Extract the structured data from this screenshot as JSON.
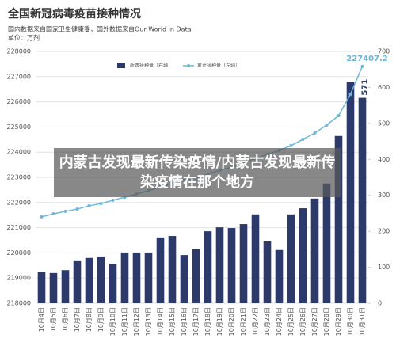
{
  "chart_data": {
    "type": "bar",
    "title": "全国新冠病毒疫苗接种情况",
    "subtitle": "国内数据来自国家卫生健康委，国外数据来自Our World in Data",
    "unit": "单位：万剂",
    "categories": [
      "10月4日",
      "10月5日",
      "10月6日",
      "10月7日",
      "10月8日",
      "10月9日",
      "10月10日",
      "10月11日",
      "10月12日",
      "10月13日",
      "10月14日",
      "10月15日",
      "10月16日",
      "10月17日",
      "10月18日",
      "10月19日",
      "10月20日",
      "10月21日",
      "10月22日",
      "10月23日",
      "10月24日",
      "10月25日",
      "10月26日",
      "10月27日",
      "10月28日",
      "10月29日",
      "10月30日",
      "10月31日"
    ],
    "series": [
      {
        "name": "新增接种量（右轴）",
        "type": "bar",
        "axis": "y2",
        "color": "#2b3a6b",
        "values": [
          86,
          84,
          92,
          117,
          126,
          130,
          110,
          141,
          141,
          141,
          183,
          187,
          134,
          150,
          200,
          211,
          209,
          220,
          247,
          172,
          148,
          247,
          264,
          291,
          333,
          465,
          615,
          571
        ]
      },
      {
        "name": "累计接种量（左轴）",
        "type": "line",
        "color": "#6fb6d8",
        "values": [
          221430,
          221550,
          221650,
          221740,
          221870,
          221960,
          222090,
          222210,
          222340,
          222470,
          222620,
          222750,
          222870,
          222970,
          223130,
          223280,
          223410,
          223570,
          223750,
          223910,
          224070,
          224260,
          224510,
          224760,
          225080,
          225450,
          226300,
          227407.2
        ]
      }
    ],
    "ylim": [
      218000,
      228000
    ],
    "yticks": [
      218000,
      219000,
      220000,
      221000,
      222000,
      223000,
      224000,
      225000,
      226000,
      227000,
      228000
    ],
    "y2lim": [
      0,
      700
    ],
    "y2ticks": [
      0,
      100,
      200,
      300,
      400,
      500,
      600,
      700
    ],
    "grid": true,
    "banner": "内蒙古发现最新传染疫情/内蒙古发现最新传染疫情在那个地方"
  }
}
